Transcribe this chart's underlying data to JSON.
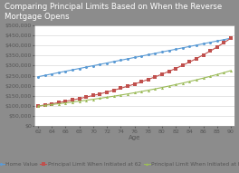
{
  "title": "Comparing Principal Limits Based on When the Reverse Mortgage Opens",
  "xlabel": "Age",
  "ages_start": 62,
  "ages_end": 90,
  "home_value_color": "#5b9bd5",
  "principal_at_62_color": "#c0504d",
  "principal_higher_color": "#9bbb59",
  "title_bg_color": "#404040",
  "title_text_color": "#ffffff",
  "background_color": "#8c8c8c",
  "plot_bg_color": "#ffffff",
  "plot_border_color": "#aaaaaa",
  "grid_color": "#d0d0d0",
  "ylim": [
    0,
    500000
  ],
  "yticks": [
    0,
    50000,
    100000,
    150000,
    200000,
    250000,
    300000,
    350000,
    400000,
    450000,
    500000
  ],
  "xticks": [
    62,
    64,
    66,
    68,
    70,
    72,
    74,
    76,
    78,
    80,
    82,
    84,
    86,
    88,
    90
  ],
  "legend_labels": [
    "Home Value",
    "Principal Limit When Initiated at 62",
    "Principal Limit When Initiated at Higher Ages"
  ],
  "title_fontsize": 6.2,
  "axis_fontsize": 5.0,
  "tick_fontsize": 4.5,
  "legend_fontsize": 4.2,
  "tick_color": "#555555"
}
